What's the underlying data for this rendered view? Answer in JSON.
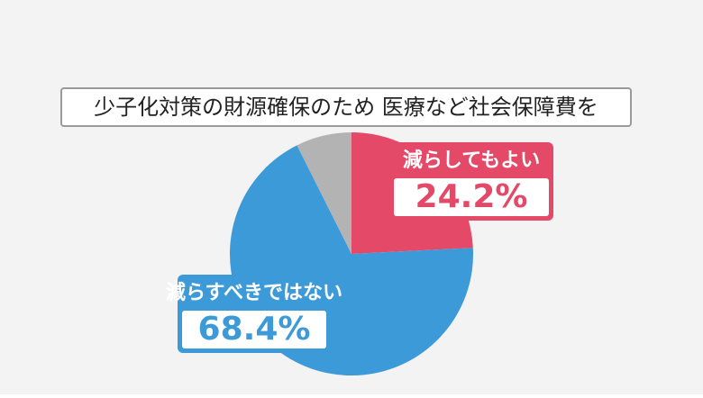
{
  "chart_data": {
    "type": "pie",
    "title": "少子化対策の財源確保のため 医療など社会保障費を",
    "categories": [
      "減らしてもよい",
      "減らすべきではない",
      null
    ],
    "values": [
      24.2,
      68.4,
      7.4
    ],
    "value_labels": [
      "24.2%",
      "68.4%",
      null
    ],
    "colors": [
      "#e44a68",
      "#3d9ad8",
      "#b3b3b3"
    ]
  }
}
